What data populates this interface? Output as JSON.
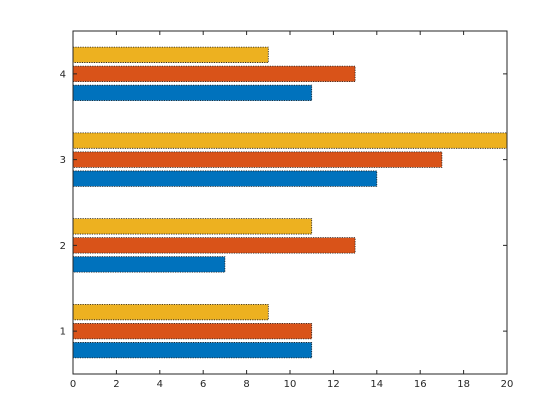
{
  "chart_data": {
    "type": "bar",
    "orientation": "horizontal",
    "categories": [
      "1",
      "2",
      "3",
      "4"
    ],
    "series": [
      {
        "values": [
          11,
          7,
          14,
          11
        ],
        "color": "#0072BD"
      },
      {
        "values": [
          11,
          13,
          17,
          13
        ],
        "color": "#D95319"
      },
      {
        "values": [
          9,
          11,
          20,
          9
        ],
        "color": "#EDB120"
      }
    ],
    "xlim": [
      0,
      20
    ],
    "xticks": [
      "0",
      "2",
      "4",
      "6",
      "8",
      "10",
      "12",
      "14",
      "16",
      "18",
      "20"
    ],
    "yticks": [
      "1",
      "2",
      "3",
      "4"
    ],
    "grid": false,
    "box": true,
    "bar_edge_style": "dotted"
  }
}
